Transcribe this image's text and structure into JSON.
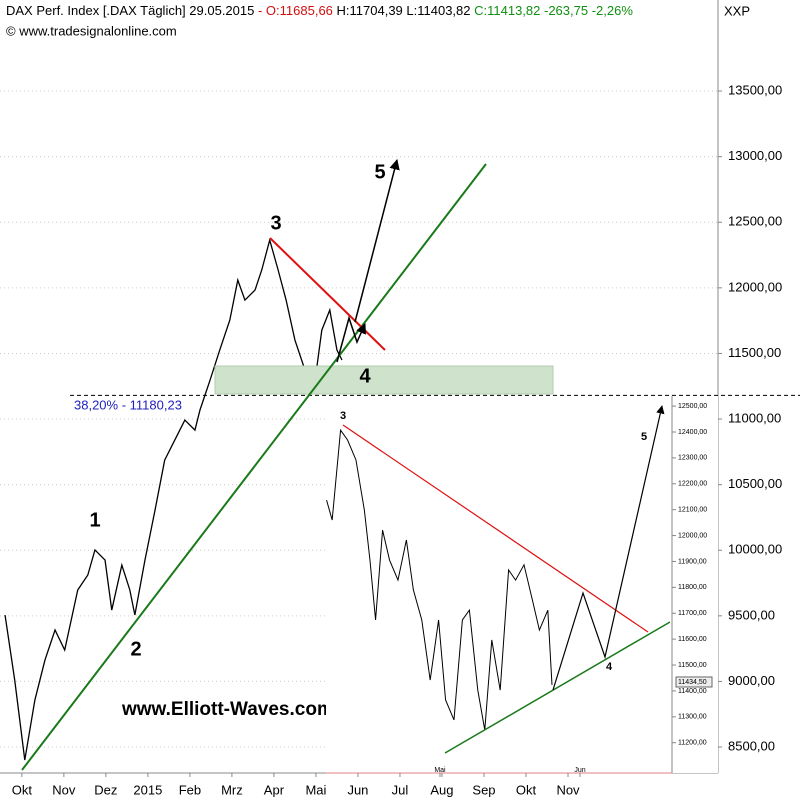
{
  "chart_data": [
    {
      "type": "line",
      "title": "DAX Perf. Index [.DAX  Täglich] 29.05.2015",
      "quote": [
        "- O:11685,66",
        "H:11704,39 L:11403,82",
        "C:11413,82 -263,75 -2,26%"
      ],
      "symbol": "XXP",
      "source": "© www.tradesignalonline.com",
      "watermark": "www.Elliott-Waves.com",
      "wave_labels": [
        "1",
        "2",
        "3",
        "4",
        "5"
      ],
      "fib_label": "38,20% - 11180,23",
      "fib_level": 11180.23,
      "color": "#000000",
      "x": [
        -0.4,
        -0.17,
        0.07,
        0.31,
        0.55,
        0.79,
        1.02,
        1.33,
        1.57,
        1.74,
        1.98,
        2.14,
        2.38,
        2.57,
        2.69,
        2.93,
        3.17,
        3.4,
        3.64,
        3.88,
        4.12,
        4.24,
        4.48,
        4.71,
        4.95,
        5.14,
        5.31,
        5.55,
        5.71,
        5.9,
        6.1,
        6.29,
        6.5,
        6.74,
        6.98,
        7.14,
        7.33,
        7.5,
        7.62
      ],
      "values": [
        9506,
        9011,
        8401,
        8858,
        9163,
        9392,
        9239,
        9697,
        9811,
        10002,
        9925,
        9544,
        9887,
        9697,
        9506,
        9925,
        10306,
        10687,
        10840,
        10992,
        10916,
        11069,
        11297,
        11526,
        11754,
        12059,
        11907,
        11983,
        12136,
        12364,
        12136,
        11907,
        11602,
        11373,
        11297,
        11678,
        11831,
        11526,
        11450
      ],
      "xlim": [
        -0.52,
        16.57
      ],
      "ylim": [
        8302,
        14194
      ],
      "xticks": [
        {
          "value": 0,
          "label": "Okt"
        },
        {
          "value": 1,
          "label": "Nov"
        },
        {
          "value": 2,
          "label": "Dez"
        },
        {
          "value": 3,
          "label": "2015"
        },
        {
          "value": 4,
          "label": "Feb"
        },
        {
          "value": 5,
          "label": "Mrz"
        },
        {
          "value": 6,
          "label": "Apr"
        },
        {
          "value": 7,
          "label": "Mai"
        },
        {
          "value": 8,
          "label": "Jun"
        },
        {
          "value": 9,
          "label": "Jul"
        },
        {
          "value": 10,
          "label": "Aug"
        },
        {
          "value": 11,
          "label": "Sep"
        },
        {
          "value": 12,
          "label": "Okt"
        },
        {
          "value": 13,
          "label": "Nov"
        }
      ],
      "yticks": [
        {
          "value": 8500,
          "label": "8500,00"
        },
        {
          "value": 9000,
          "label": "9000,00"
        },
        {
          "value": 9500,
          "label": "9500,00"
        },
        {
          "value": 10000,
          "label": "10000,00"
        },
        {
          "value": 10500,
          "label": "10500,00"
        },
        {
          "value": 11000,
          "label": "11000,00"
        },
        {
          "value": 11500,
          "label": "11500,00"
        },
        {
          "value": 12000,
          "label": "12000,00"
        },
        {
          "value": 12500,
          "label": "12500,00"
        },
        {
          "value": 13000,
          "label": "13000,00"
        },
        {
          "value": 13500,
          "label": "13500,00"
        }
      ],
      "grid": true
    },
    {
      "type": "line",
      "wave_labels": [
        "3",
        "4",
        "5"
      ],
      "color": "#000000",
      "x": [
        -0.81,
        -0.77,
        -0.71,
        -0.66,
        -0.6,
        -0.54,
        -0.5,
        -0.46,
        -0.41,
        -0.36,
        -0.3,
        -0.24,
        -0.19,
        -0.13,
        -0.07,
        -0.01,
        0.04,
        0.1,
        0.16,
        0.21,
        0.27,
        0.32,
        0.37,
        0.43,
        0.49,
        0.54,
        0.6,
        0.66,
        0.71,
        0.77,
        0.8
      ],
      "values": [
        12137,
        12060,
        12407,
        12369,
        12292,
        12098,
        11905,
        11674,
        12021,
        11905,
        11828,
        11983,
        11790,
        11674,
        11442,
        11674,
        11365,
        11288,
        11674,
        11712,
        11403,
        11249,
        11597,
        11403,
        11867,
        11828,
        11887,
        11751,
        11635,
        11712,
        11423
      ],
      "last_price": {
        "value": 11434.5,
        "label": "11434,50"
      },
      "xlim": [
        -0.814,
        1.657
      ],
      "ylim": [
        11083,
        12539
      ],
      "xticks": [
        {
          "value": 0,
          "label": "Mai"
        },
        {
          "value": 1,
          "label": "Jun"
        }
      ],
      "yticks": [
        {
          "value": 11200,
          "label": "11200,00"
        },
        {
          "value": 11300,
          "label": "11300,00"
        },
        {
          "value": 11400,
          "label": "11400,00"
        },
        {
          "value": 11500,
          "label": "11500,00"
        },
        {
          "value": 11600,
          "label": "11600,00"
        },
        {
          "value": 11700,
          "label": "11700,00"
        },
        {
          "value": 11800,
          "label": "11800,00"
        },
        {
          "value": 11900,
          "label": "11900,00"
        },
        {
          "value": 12000,
          "label": "12000,00"
        },
        {
          "value": 12100,
          "label": "12100,00"
        },
        {
          "value": 12200,
          "label": "12200,00"
        },
        {
          "value": 12300,
          "label": "12300,00"
        },
        {
          "value": 12400,
          "label": "12400,00"
        },
        {
          "value": 12500,
          "label": "12500,00"
        }
      ],
      "grid": false
    }
  ]
}
